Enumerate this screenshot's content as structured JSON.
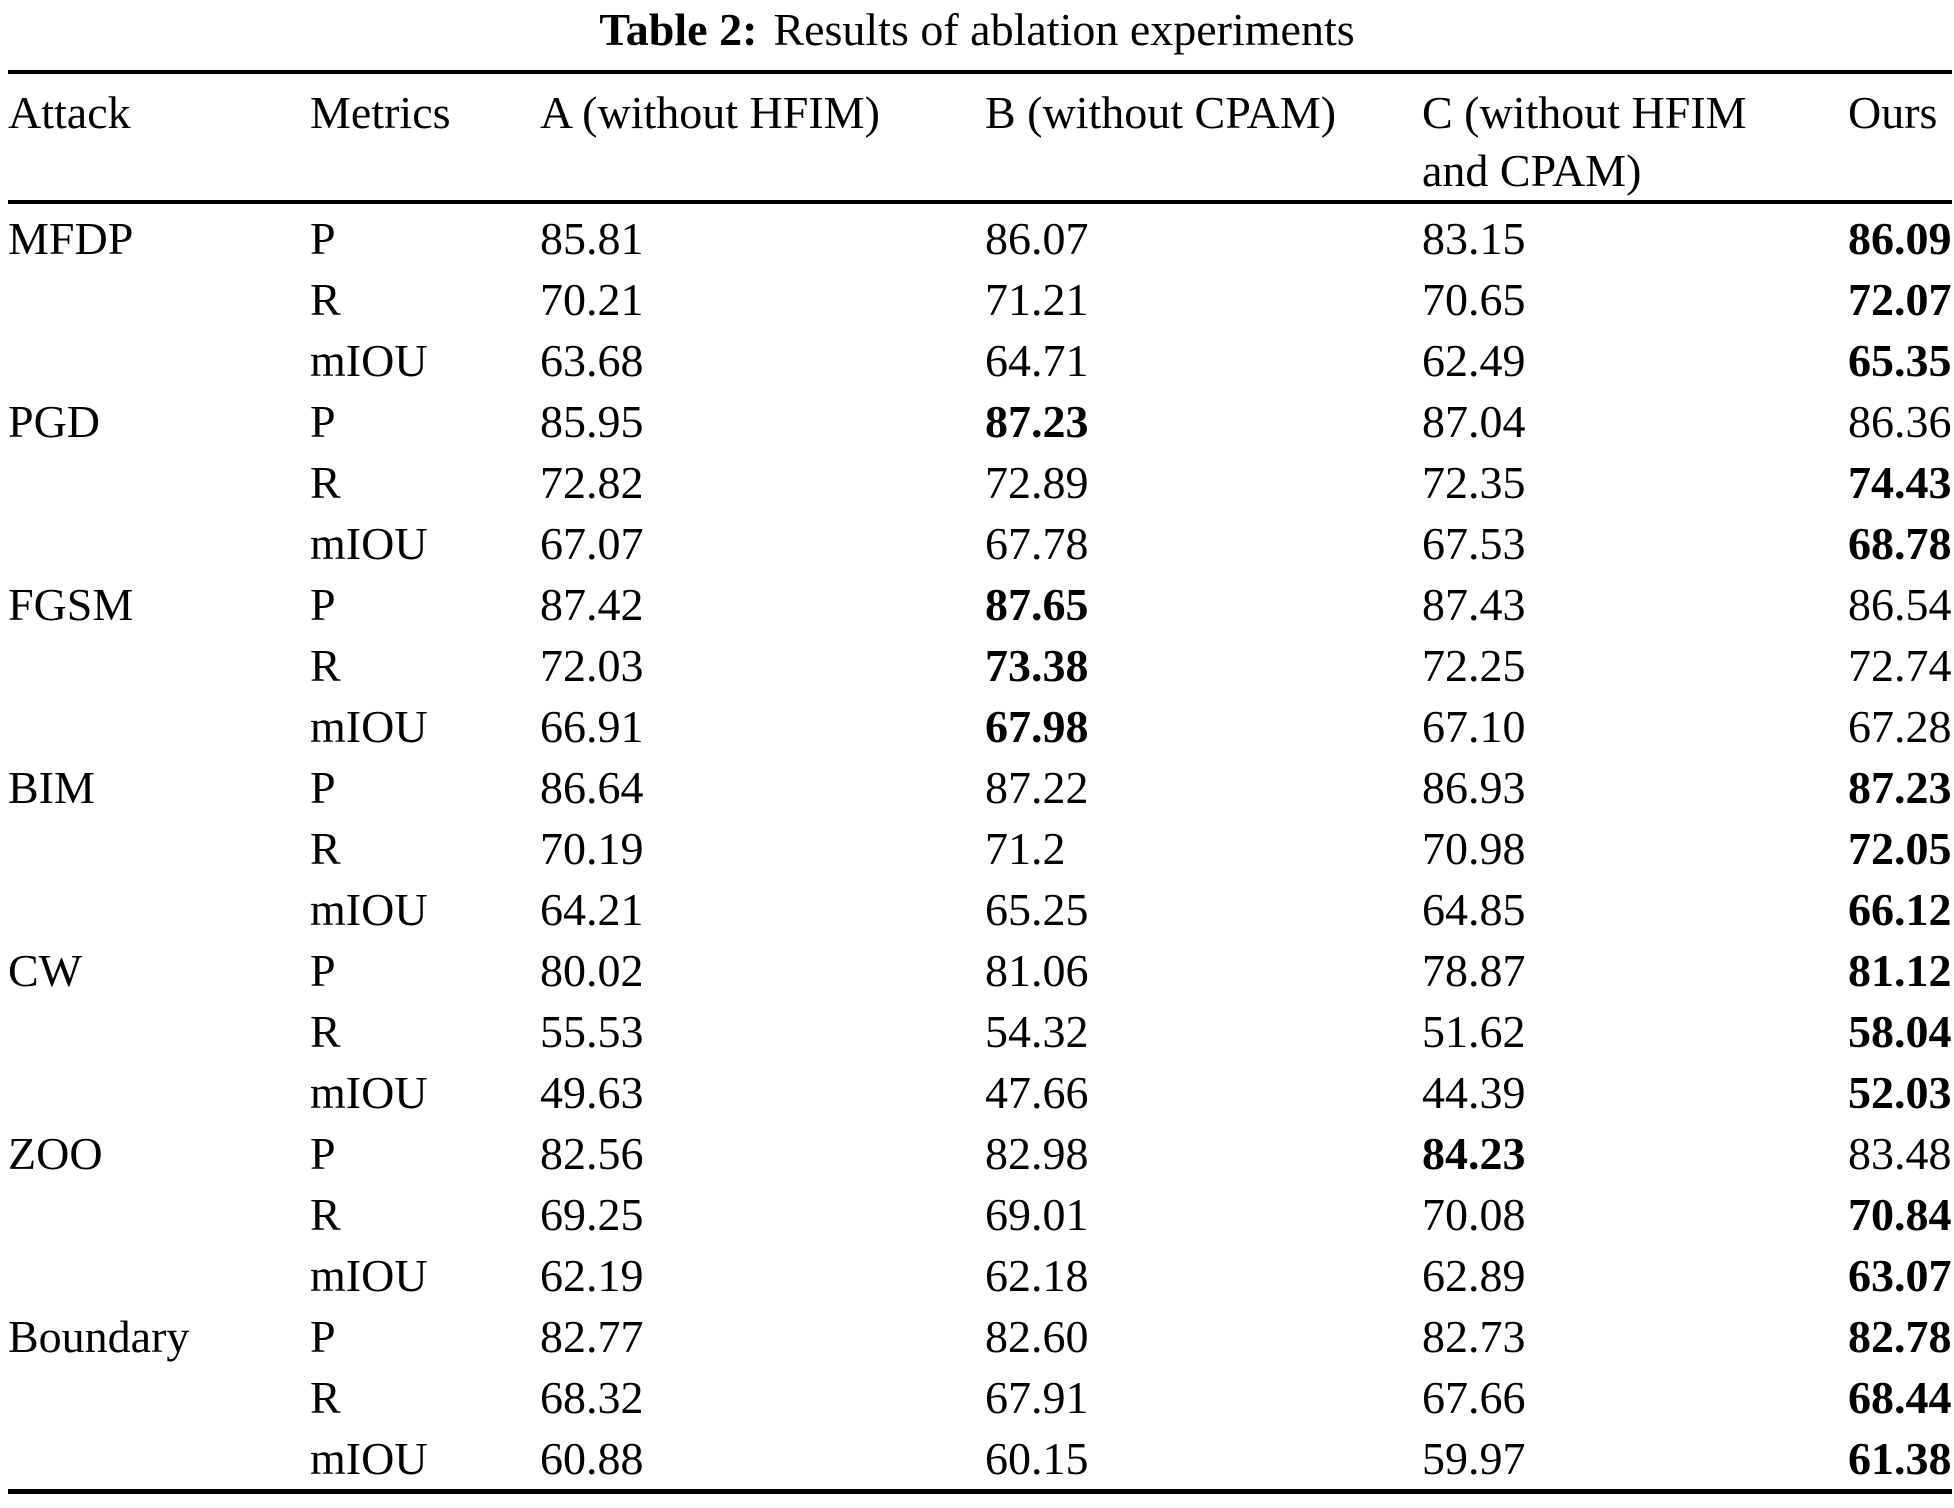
{
  "caption": {
    "label": "Table 2:",
    "text": "Results of ablation experiments"
  },
  "columns": [
    "Attack",
    "Metrics",
    "A (without HFIM)",
    "B (without CPAM)",
    "C (without HFIM and CPAM)",
    "Ours"
  ],
  "rows": [
    {
      "attack": "MFDP",
      "metric": "P",
      "values": [
        {
          "t": "85.81",
          "b": false
        },
        {
          "t": "86.07",
          "b": false
        },
        {
          "t": "83.15",
          "b": false
        },
        {
          "t": "86.09",
          "b": true
        }
      ]
    },
    {
      "attack": "",
      "metric": "R",
      "values": [
        {
          "t": "70.21",
          "b": false
        },
        {
          "t": "71.21",
          "b": false
        },
        {
          "t": "70.65",
          "b": false
        },
        {
          "t": "72.07",
          "b": true
        }
      ]
    },
    {
      "attack": "",
      "metric": "mIOU",
      "values": [
        {
          "t": "63.68",
          "b": false
        },
        {
          "t": "64.71",
          "b": false
        },
        {
          "t": "62.49",
          "b": false
        },
        {
          "t": "65.35",
          "b": true
        }
      ]
    },
    {
      "attack": "PGD",
      "metric": "P",
      "values": [
        {
          "t": "85.95",
          "b": false
        },
        {
          "t": "87.23",
          "b": true
        },
        {
          "t": "87.04",
          "b": false
        },
        {
          "t": "86.36",
          "b": false
        }
      ]
    },
    {
      "attack": "",
      "metric": "R",
      "values": [
        {
          "t": "72.82",
          "b": false
        },
        {
          "t": "72.89",
          "b": false
        },
        {
          "t": "72.35",
          "b": false
        },
        {
          "t": "74.43",
          "b": true
        }
      ]
    },
    {
      "attack": "",
      "metric": "mIOU",
      "values": [
        {
          "t": "67.07",
          "b": false
        },
        {
          "t": "67.78",
          "b": false
        },
        {
          "t": "67.53",
          "b": false
        },
        {
          "t": "68.78",
          "b": true
        }
      ]
    },
    {
      "attack": "FGSM",
      "metric": "P",
      "values": [
        {
          "t": "87.42",
          "b": false
        },
        {
          "t": "87.65",
          "b": true
        },
        {
          "t": "87.43",
          "b": false
        },
        {
          "t": "86.54",
          "b": false
        }
      ]
    },
    {
      "attack": "",
      "metric": "R",
      "values": [
        {
          "t": "72.03",
          "b": false
        },
        {
          "t": "73.38",
          "b": true
        },
        {
          "t": "72.25",
          "b": false
        },
        {
          "t": "72.74",
          "b": false
        }
      ]
    },
    {
      "attack": "",
      "metric": "mIOU",
      "values": [
        {
          "t": "66.91",
          "b": false
        },
        {
          "t": "67.98",
          "b": true
        },
        {
          "t": "67.10",
          "b": false
        },
        {
          "t": "67.28",
          "b": false
        }
      ]
    },
    {
      "attack": "BIM",
      "metric": "P",
      "values": [
        {
          "t": "86.64",
          "b": false
        },
        {
          "t": "87.22",
          "b": false
        },
        {
          "t": "86.93",
          "b": false
        },
        {
          "t": "87.23",
          "b": true
        }
      ]
    },
    {
      "attack": "",
      "metric": "R",
      "values": [
        {
          "t": "70.19",
          "b": false
        },
        {
          "t": "71.2",
          "b": false
        },
        {
          "t": "70.98",
          "b": false
        },
        {
          "t": "72.05",
          "b": true
        }
      ]
    },
    {
      "attack": "",
      "metric": "mIOU",
      "values": [
        {
          "t": "64.21",
          "b": false
        },
        {
          "t": "65.25",
          "b": false
        },
        {
          "t": "64.85",
          "b": false
        },
        {
          "t": "66.12",
          "b": true
        }
      ]
    },
    {
      "attack": "CW",
      "metric": "P",
      "values": [
        {
          "t": "80.02",
          "b": false
        },
        {
          "t": "81.06",
          "b": false
        },
        {
          "t": "78.87",
          "b": false
        },
        {
          "t": "81.12",
          "b": true
        }
      ]
    },
    {
      "attack": "",
      "metric": "R",
      "values": [
        {
          "t": "55.53",
          "b": false
        },
        {
          "t": "54.32",
          "b": false
        },
        {
          "t": "51.62",
          "b": false
        },
        {
          "t": "58.04",
          "b": true
        }
      ]
    },
    {
      "attack": "",
      "metric": "mIOU",
      "values": [
        {
          "t": "49.63",
          "b": false
        },
        {
          "t": "47.66",
          "b": false
        },
        {
          "t": "44.39",
          "b": false
        },
        {
          "t": "52.03",
          "b": true
        }
      ]
    },
    {
      "attack": "ZOO",
      "metric": "P",
      "values": [
        {
          "t": "82.56",
          "b": false
        },
        {
          "t": "82.98",
          "b": false
        },
        {
          "t": "84.23",
          "b": true
        },
        {
          "t": "83.48",
          "b": false
        }
      ]
    },
    {
      "attack": "",
      "metric": "R",
      "values": [
        {
          "t": "69.25",
          "b": false
        },
        {
          "t": "69.01",
          "b": false
        },
        {
          "t": "70.08",
          "b": false
        },
        {
          "t": "70.84",
          "b": true
        }
      ]
    },
    {
      "attack": "",
      "metric": "mIOU",
      "values": [
        {
          "t": "62.19",
          "b": false
        },
        {
          "t": "62.18",
          "b": false
        },
        {
          "t": "62.89",
          "b": false
        },
        {
          "t": "63.07",
          "b": true
        }
      ]
    },
    {
      "attack": "Boundary",
      "metric": "P",
      "values": [
        {
          "t": "82.77",
          "b": false
        },
        {
          "t": "82.60",
          "b": false
        },
        {
          "t": "82.73",
          "b": false
        },
        {
          "t": "82.78",
          "b": true
        }
      ]
    },
    {
      "attack": "",
      "metric": "R",
      "values": [
        {
          "t": "68.32",
          "b": false
        },
        {
          "t": "67.91",
          "b": false
        },
        {
          "t": "67.66",
          "b": false
        },
        {
          "t": "68.44",
          "b": true
        }
      ]
    },
    {
      "attack": "",
      "metric": "mIOU",
      "values": [
        {
          "t": "60.88",
          "b": false
        },
        {
          "t": "60.15",
          "b": false
        },
        {
          "t": "59.97",
          "b": false
        },
        {
          "t": "61.38",
          "b": true
        }
      ]
    }
  ]
}
